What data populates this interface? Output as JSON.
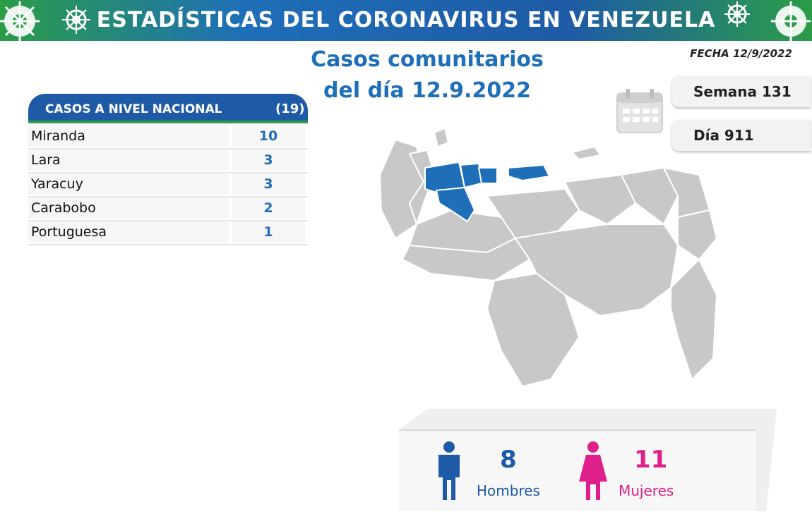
{
  "header": {
    "title": "ESTADÍSTICAS DEL CORONAVIRUS EN VENEZUELA"
  },
  "subtitle": {
    "line1": "Casos comunitarios",
    "line2": "del día 12.9.2022"
  },
  "fecha": "FECHA 12/9/2022",
  "semana": "Semana 131",
  "dia": "Día 911",
  "table": {
    "header_label": "CASOS A NIVEL NACIONAL",
    "header_total": "(19)",
    "rows": [
      {
        "state": "Miranda",
        "value": "10"
      },
      {
        "state": "Lara",
        "value": "3"
      },
      {
        "state": "Yaracuy",
        "value": "3"
      },
      {
        "state": "Carabobo",
        "value": "2"
      },
      {
        "state": "Portuguesa",
        "value": "1"
      }
    ]
  },
  "gender": {
    "men_count": "8",
    "men_label": "Hombres",
    "women_count": "11",
    "women_label": "Mujeres"
  },
  "colors": {
    "blue": "#1e5aa6",
    "green": "#2a9d47",
    "pink": "#e0208a",
    "map_gray": "#c8c8c8"
  },
  "icons": [
    "virus-icon",
    "calendar-icon",
    "man-icon",
    "woman-icon"
  ]
}
